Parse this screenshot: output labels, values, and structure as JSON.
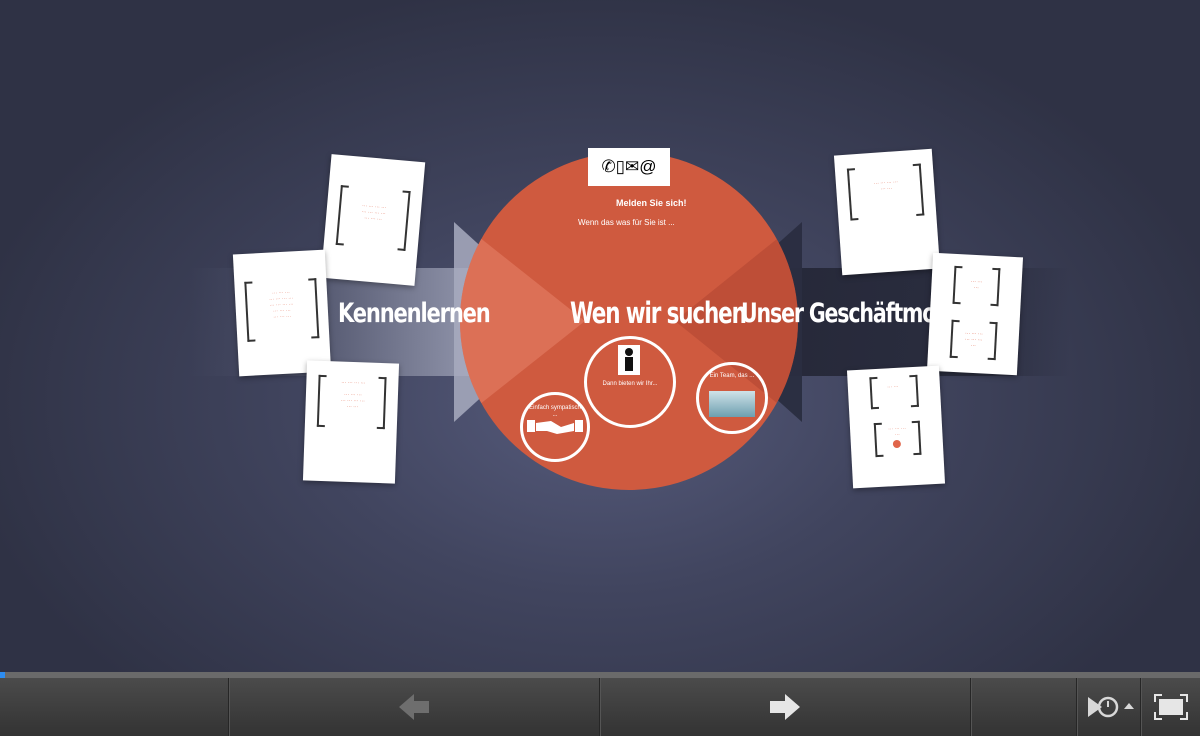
{
  "presentation": {
    "left_title": "Kennenlernen",
    "center_title": "Wen wir suchen",
    "right_title": "Unser Geschäftmodell",
    "contact_icons": "✆▯✉@",
    "contact_heading": "Melden Sie sich!",
    "contact_sub": "Wenn das was für Sie ist ...",
    "center_ring_text": "Dann bieten wir Ihr...",
    "handshake_ring_text": "Einfach sympatisch ...",
    "right_ring_text": "Ein Team, das ..."
  },
  "colors": {
    "circle": "#cf5a3f",
    "card_text": "#e0654a",
    "toolbar": "#3a3a3a",
    "progress": "#2d8cf0"
  },
  "toolbar": {
    "prev_icon": "arrow-left-icon",
    "next_icon": "arrow-right-icon",
    "autoplay_icon": "autoplay-timer-icon",
    "fullscreen_icon": "fullscreen-icon",
    "progress": 0.004
  }
}
